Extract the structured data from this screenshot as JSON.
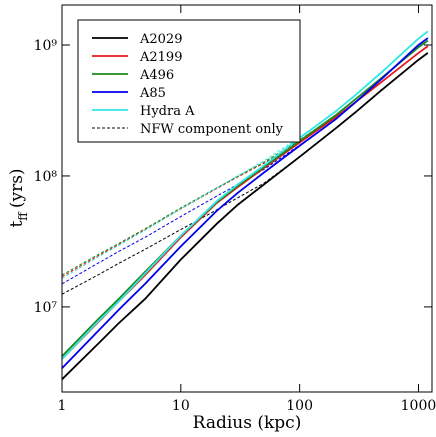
{
  "chart_data": {
    "type": "line",
    "log_x": true,
    "log_y": true,
    "x_label": "Radius (kpc)",
    "y_label": {
      "main": "t",
      "sub": "ff",
      "unit": "(yrs)"
    },
    "xlim": [
      1,
      1300
    ],
    "ylim": [
      2240000,
      2020000000
    ],
    "xticks": [
      1,
      10,
      100,
      1000
    ],
    "yticks": [
      {
        "value": 10000000,
        "label": "10⁷"
      },
      {
        "value": 100000000,
        "label": "10⁸"
      },
      {
        "value": 1000000000,
        "label": "10⁹"
      }
    ],
    "x": [
      1,
      2,
      3,
      5,
      10,
      20,
      30,
      50,
      100,
      200,
      300,
      500,
      1000,
      1200
    ],
    "series": [
      {
        "name": "A2029",
        "color": "#000000",
        "values": [
          2800000,
          5200000,
          7500000,
          11500000,
          23000000,
          43000000,
          60000000,
          86000000,
          140000000,
          230000000,
          310000000,
          460000000,
          770000000,
          870000000
        ],
        "nfw_values": [
          12500000,
          17500000,
          21500000,
          27500000,
          39000000,
          55000000,
          68000000,
          88000000,
          140000000,
          230000000,
          310000000,
          460000000,
          770000000,
          870000000
        ]
      },
      {
        "name": "A2199",
        "color": "#e41a1c",
        "values": [
          4000000,
          7600000,
          11000000,
          17500000,
          34000000,
          62000000,
          82000000,
          115000000,
          180000000,
          280000000,
          370000000,
          530000000,
          870000000,
          980000000
        ],
        "nfw_values": [
          17000000,
          24500000,
          30000000,
          39000000,
          56000000,
          80000000,
          98000000,
          125000000,
          185000000,
          280000000,
          370000000,
          530000000,
          870000000,
          980000000
        ]
      },
      {
        "name": "A496",
        "color": "#1a8a1a",
        "values": [
          4200000,
          8000000,
          11500000,
          18500000,
          35000000,
          63000000,
          84000000,
          117000000,
          185000000,
          290000000,
          390000000,
          570000000,
          960000000,
          1080000000
        ],
        "nfw_values": [
          17500000,
          25000000,
          30500000,
          39500000,
          57000000,
          81000000,
          99000000,
          127000000,
          188000000,
          290000000,
          390000000,
          570000000,
          960000000,
          1080000000
        ]
      },
      {
        "name": "A85",
        "color": "#0000ee",
        "values": [
          3400000,
          6500000,
          9500000,
          15000000,
          29000000,
          54000000,
          74000000,
          106000000,
          170000000,
          270000000,
          370000000,
          560000000,
          1000000000,
          1130000000
        ],
        "nfw_values": [
          15000000,
          21500000,
          26500000,
          34000000,
          49000000,
          70000000,
          86000000,
          112000000,
          172000000,
          270000000,
          370000000,
          560000000,
          1000000000,
          1130000000
        ]
      },
      {
        "name": "Hydra A",
        "color": "#33e6e6",
        "values": [
          4000000,
          7700000,
          11000000,
          18000000,
          35000000,
          64000000,
          86000000,
          120000000,
          195000000,
          310000000,
          420000000,
          630000000,
          1120000000,
          1270000000
        ],
        "nfw_values": [
          16500000,
          24000000,
          29500000,
          38500000,
          56000000,
          81000000,
          100000000,
          130000000,
          198000000,
          310000000,
          420000000,
          630000000,
          1120000000,
          1270000000
        ]
      }
    ],
    "nfw_legend": {
      "name": "NFW component only",
      "color": "#000000"
    }
  }
}
